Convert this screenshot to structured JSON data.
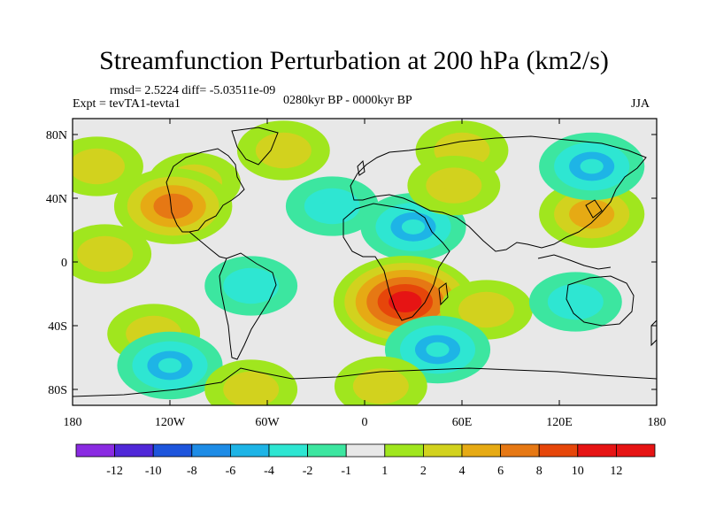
{
  "chart_data": {
    "type": "heatmap",
    "title": "Streamfunction Perturbation at 200 hPa (km2/s)",
    "stats_text": "rmsd= 2.5224  diff= -5.03511e-09",
    "experiment_text": "Expt = tevTA1-tevta1",
    "period_text": "0280kyr BP - 0000kyr BP",
    "season": "JJA",
    "units": "km2/s",
    "xlim": [
      -180,
      180
    ],
    "ylim": [
      -90,
      90
    ],
    "x_ticks": [
      {
        "value": -180,
        "label": "180"
      },
      {
        "value": -120,
        "label": "120W"
      },
      {
        "value": -60,
        "label": "60W"
      },
      {
        "value": 0,
        "label": "0"
      },
      {
        "value": 60,
        "label": "60E"
      },
      {
        "value": 120,
        "label": "120E"
      },
      {
        "value": 180,
        "label": "180"
      }
    ],
    "y_ticks": [
      {
        "value": 80,
        "label": "80N"
      },
      {
        "value": 40,
        "label": "40N"
      },
      {
        "value": 0,
        "label": "0"
      },
      {
        "value": -40,
        "label": "40S"
      },
      {
        "value": -80,
        "label": "80S"
      }
    ],
    "colorbar": {
      "levels": [
        -12,
        -10,
        -8,
        -6,
        -4,
        -2,
        -1,
        1,
        2,
        4,
        6,
        8,
        10,
        12
      ],
      "level_labels": [
        "-12",
        "-10",
        "-8",
        "-6",
        "-4",
        "-2",
        "-1",
        "1",
        "2",
        "4",
        "6",
        "8",
        "10",
        "12"
      ],
      "colors": [
        "#8a2be2",
        "#5028d8",
        "#1e55dc",
        "#1e8ce6",
        "#1eb4e6",
        "#2ee6d2",
        "#3ce6a0",
        "#e8e8e8",
        "#a0e61e",
        "#d2d21e",
        "#e6aa14",
        "#e67814",
        "#e6460a",
        "#e61414",
        "#e61414"
      ]
    },
    "features": [
      {
        "name": "north-pacific-positive",
        "lon": -165,
        "lat": 60,
        "value": 2.5
      },
      {
        "name": "north-america-positive",
        "lon": -105,
        "lat": 50,
        "value": 3.5
      },
      {
        "name": "sw-us-maximum",
        "lon": -118,
        "lat": 35,
        "value": 7
      },
      {
        "name": "north-atlantic-positive",
        "lon": -50,
        "lat": 70,
        "value": 3
      },
      {
        "name": "subtropical-atlantic-negative",
        "lon": -20,
        "lat": 35,
        "value": -3
      },
      {
        "name": "north-africa-negative",
        "lon": 30,
        "lat": 22,
        "value": -4
      },
      {
        "name": "eurasia-arctic-positive",
        "lon": 60,
        "lat": 70,
        "value": 3
      },
      {
        "name": "central-asia-positive",
        "lon": 55,
        "lat": 48,
        "value": 2
      },
      {
        "name": "east-asia-positive",
        "lon": 140,
        "lat": 30,
        "value": 5
      },
      {
        "name": "northeast-asia-negative",
        "lon": 140,
        "lat": 60,
        "value": -4
      },
      {
        "name": "southern-africa-maximum",
        "lon": 25,
        "lat": -25,
        "value": 11
      },
      {
        "name": "south-indian-ocean-positive",
        "lon": 75,
        "lat": -30,
        "value": 3
      },
      {
        "name": "australia-negative",
        "lon": 130,
        "lat": -25,
        "value": -3
      },
      {
        "name": "southeast-pacific-positive",
        "lon": -130,
        "lat": -45,
        "value": 2.5
      },
      {
        "name": "south-america-negative",
        "lon": -70,
        "lat": -15,
        "value": -3
      },
      {
        "name": "south-atlantic-negative",
        "lon": 45,
        "lat": -55,
        "value": -4
      },
      {
        "name": "southern-ocean-negative",
        "lon": -120,
        "lat": -65,
        "value": -4
      },
      {
        "name": "east-pacific-tropical-positive",
        "lon": -160,
        "lat": 5,
        "value": 2
      },
      {
        "name": "antarctic-positive",
        "lon": 10,
        "lat": -78,
        "value": 2
      },
      {
        "name": "west-antarctic-positive",
        "lon": -70,
        "lat": -80,
        "value": 2
      }
    ]
  }
}
